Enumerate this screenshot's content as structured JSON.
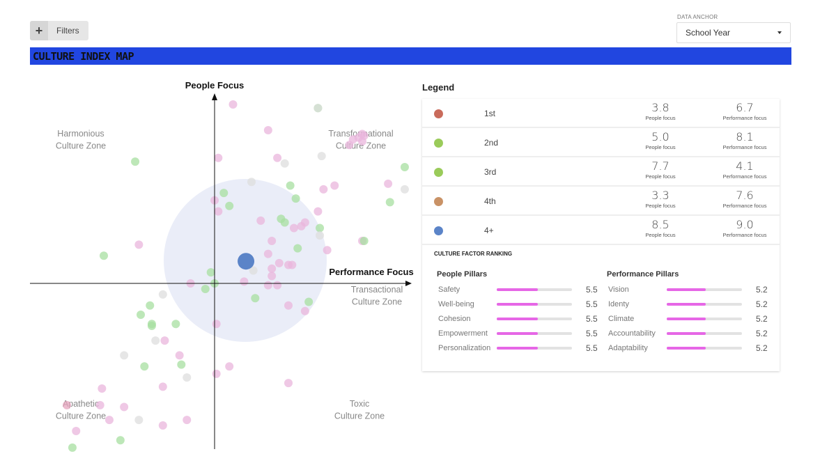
{
  "toolbar": {
    "filters_icon": "+",
    "filters_label": "Filters"
  },
  "data_anchor": {
    "caption": "DATA ANCHOR",
    "selected": "School Year",
    "icon": "caret-down-icon"
  },
  "title": "CULTURE INDEX MAP",
  "chart_data": {
    "type": "scatter",
    "title": "CULTURE INDEX MAP",
    "x_axis_label": "Performance Focus",
    "y_axis_label": "People Focus",
    "zones": {
      "top_left": [
        "Harmonious",
        "Culture Zone"
      ],
      "top_right": [
        "Transformational",
        "Culture Zone"
      ],
      "right": [
        "Transactional",
        "Culture Zone"
      ],
      "bottom_left": [
        "Apathetic",
        "Culture Zone"
      ],
      "bottom_right": [
        "Toxic",
        "Culture Zone"
      ]
    },
    "xlim": [
      -100,
      100
    ],
    "ylim": [
      -100,
      100
    ],
    "highlight_point": {
      "x": 17,
      "y": 12,
      "color": "#5b84c8",
      "halo_color": "#e3e7f6"
    },
    "colors": {
      "pink": "#e9b5dc",
      "green": "#a7dfa0",
      "gray": "#dedede",
      "rose": "#e6a4bd"
    },
    "points": [
      {
        "x": 10,
        "y": 97,
        "c": "pink"
      },
      {
        "x": 56,
        "y": 95,
        "c": "green"
      },
      {
        "x": 56,
        "y": 95,
        "c": "gray"
      },
      {
        "x": 29,
        "y": 83,
        "c": "pink"
      },
      {
        "x": 75,
        "y": 78,
        "c": "pink"
      },
      {
        "x": 78,
        "y": 79,
        "c": "pink"
      },
      {
        "x": 80,
        "y": 81,
        "c": "pink"
      },
      {
        "x": 81,
        "y": 80,
        "c": "pink"
      },
      {
        "x": 73,
        "y": 75,
        "c": "pink"
      },
      {
        "x": 80,
        "y": 77,
        "c": "pink"
      },
      {
        "x": -43,
        "y": 66,
        "c": "green"
      },
      {
        "x": 2,
        "y": 68,
        "c": "pink"
      },
      {
        "x": 34,
        "y": 68,
        "c": "pink"
      },
      {
        "x": 38,
        "y": 65,
        "c": "gray"
      },
      {
        "x": 58,
        "y": 69,
        "c": "gray"
      },
      {
        "x": 103,
        "y": 63,
        "c": "green"
      },
      {
        "x": 20,
        "y": 55,
        "c": "gray"
      },
      {
        "x": 41,
        "y": 53,
        "c": "green"
      },
      {
        "x": 59,
        "y": 51,
        "c": "pink"
      },
      {
        "x": 65,
        "y": 53,
        "c": "pink"
      },
      {
        "x": 94,
        "y": 54,
        "c": "pink"
      },
      {
        "x": 103,
        "y": 51,
        "c": "gray"
      },
      {
        "x": 5,
        "y": 49,
        "c": "green"
      },
      {
        "x": 0,
        "y": 45,
        "c": "pink"
      },
      {
        "x": 44,
        "y": 46,
        "c": "green"
      },
      {
        "x": 95,
        "y": 44,
        "c": "green"
      },
      {
        "x": 8,
        "y": 42,
        "c": "green"
      },
      {
        "x": 2,
        "y": 39,
        "c": "pink"
      },
      {
        "x": 56,
        "y": 39,
        "c": "pink"
      },
      {
        "x": 25,
        "y": 34,
        "c": "pink"
      },
      {
        "x": 36,
        "y": 35,
        "c": "green"
      },
      {
        "x": 38,
        "y": 33,
        "c": "green"
      },
      {
        "x": 43,
        "y": 30,
        "c": "pink"
      },
      {
        "x": 47,
        "y": 31,
        "c": "pink"
      },
      {
        "x": 49,
        "y": 33,
        "c": "pink"
      },
      {
        "x": 57,
        "y": 30,
        "c": "green"
      },
      {
        "x": 57,
        "y": 26,
        "c": "gray"
      },
      {
        "x": 80,
        "y": 23,
        "c": "pink"
      },
      {
        "x": 81,
        "y": 23,
        "c": "green"
      },
      {
        "x": -41,
        "y": 21,
        "c": "pink"
      },
      {
        "x": 31,
        "y": 23,
        "c": "pink"
      },
      {
        "x": 45,
        "y": 19,
        "c": "green"
      },
      {
        "x": 61,
        "y": 18,
        "c": "pink"
      },
      {
        "x": -60,
        "y": 15,
        "c": "green"
      },
      {
        "x": 29,
        "y": 16,
        "c": "pink"
      },
      {
        "x": 35,
        "y": 11,
        "c": "pink"
      },
      {
        "x": 40,
        "y": 10,
        "c": "pink"
      },
      {
        "x": 42,
        "y": 10,
        "c": "pink"
      },
      {
        "x": 21,
        "y": 7,
        "c": "gray"
      },
      {
        "x": 31,
        "y": 8,
        "c": "pink"
      },
      {
        "x": 31,
        "y": 4,
        "c": "pink"
      },
      {
        "x": -2,
        "y": 6,
        "c": "green"
      },
      {
        "x": -13,
        "y": 0,
        "c": "pink"
      },
      {
        "x": 0,
        "y": 0,
        "c": "green"
      },
      {
        "x": 16,
        "y": 1,
        "c": "pink"
      },
      {
        "x": 29,
        "y": -1,
        "c": "pink"
      },
      {
        "x": 34,
        "y": -1,
        "c": "pink"
      },
      {
        "x": -5,
        "y": -3,
        "c": "green"
      },
      {
        "x": -28,
        "y": -6,
        "c": "gray"
      },
      {
        "x": 22,
        "y": -8,
        "c": "green"
      },
      {
        "x": -35,
        "y": -12,
        "c": "green"
      },
      {
        "x": 40,
        "y": -12,
        "c": "pink"
      },
      {
        "x": 51,
        "y": -10,
        "c": "green"
      },
      {
        "x": -40,
        "y": -17,
        "c": "green"
      },
      {
        "x": 49,
        "y": -15,
        "c": "pink"
      },
      {
        "x": -34,
        "y": -22,
        "c": "green"
      },
      {
        "x": -34,
        "y": -23,
        "c": "green"
      },
      {
        "x": -21,
        "y": -22,
        "c": "green"
      },
      {
        "x": 1,
        "y": -22,
        "c": "pink"
      },
      {
        "x": -32,
        "y": -31,
        "c": "gray"
      },
      {
        "x": -27,
        "y": -31,
        "c": "pink"
      },
      {
        "x": -49,
        "y": -39,
        "c": "gray"
      },
      {
        "x": -19,
        "y": -39,
        "c": "pink"
      },
      {
        "x": -18,
        "y": -44,
        "c": "green"
      },
      {
        "x": -38,
        "y": -45,
        "c": "green"
      },
      {
        "x": -15,
        "y": -51,
        "c": "gray"
      },
      {
        "x": 1,
        "y": -49,
        "c": "pink"
      },
      {
        "x": 8,
        "y": -45,
        "c": "pink"
      },
      {
        "x": -28,
        "y": -56,
        "c": "pink"
      },
      {
        "x": 40,
        "y": -54,
        "c": "pink"
      },
      {
        "x": -61,
        "y": -57,
        "c": "pink"
      },
      {
        "x": -62,
        "y": -66,
        "c": "pink"
      },
      {
        "x": -49,
        "y": -67,
        "c": "pink"
      },
      {
        "x": -80,
        "y": -66,
        "c": "rose"
      },
      {
        "x": -41,
        "y": -74,
        "c": "gray"
      },
      {
        "x": -57,
        "y": -74,
        "c": "pink"
      },
      {
        "x": -28,
        "y": -77,
        "c": "pink"
      },
      {
        "x": -15,
        "y": -74,
        "c": "pink"
      },
      {
        "x": -75,
        "y": -80,
        "c": "pink"
      },
      {
        "x": -51,
        "y": -85,
        "c": "green"
      },
      {
        "x": -77,
        "y": -89,
        "c": "green"
      }
    ]
  },
  "legend": {
    "title": "Legend",
    "rows": [
      {
        "rank": "1st",
        "color": "#c96b5b",
        "people": "3.8",
        "performance": "6.7"
      },
      {
        "rank": "2nd",
        "color": "#9acb5a",
        "people": "5.0",
        "performance": "8.1"
      },
      {
        "rank": "3rd",
        "color": "#9acb5a",
        "people": "7.7",
        "performance": "4.1"
      },
      {
        "rank": "4th",
        "color": "#c99266",
        "people": "3.3",
        "performance": "7.6"
      },
      {
        "rank": "4+",
        "color": "#5b84c8",
        "people": "8.5",
        "performance": "9.0"
      }
    ],
    "people_label": "People focus",
    "performance_label": "Performance focus"
  },
  "ranking": {
    "title": "CULTURE FACTOR RANKING",
    "people": {
      "heading": "People Pillars",
      "items": [
        {
          "label": "Safety",
          "value": "5.5",
          "fill": 0.55
        },
        {
          "label": "Well-being",
          "value": "5.5",
          "fill": 0.55
        },
        {
          "label": "Cohesion",
          "value": "5.5",
          "fill": 0.55
        },
        {
          "label": "Empowerment",
          "value": "5.5",
          "fill": 0.55
        },
        {
          "label": "Personalization",
          "value": "5.5",
          "fill": 0.55
        }
      ]
    },
    "performance": {
      "heading": "Performance Pillars",
      "items": [
        {
          "label": "Vision",
          "value": "5.2",
          "fill": 0.52
        },
        {
          "label": "Identy",
          "value": "5.2",
          "fill": 0.52
        },
        {
          "label": "Climate",
          "value": "5.2",
          "fill": 0.52
        },
        {
          "label": "Accountability",
          "value": "5.2",
          "fill": 0.52
        },
        {
          "label": "Adaptability",
          "value": "5.2",
          "fill": 0.52
        }
      ]
    }
  }
}
